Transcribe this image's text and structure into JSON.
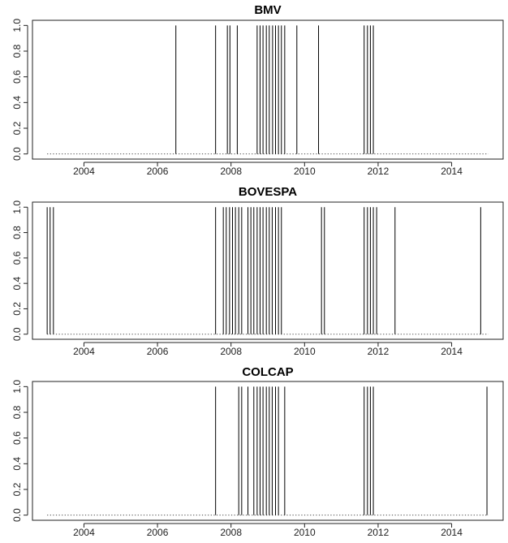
{
  "chart_data": [
    {
      "type": "line",
      "title": "BMV",
      "xlim": [
        2002.6,
        2015.4
      ],
      "ylim": [
        -0.04,
        1.04
      ],
      "x_ticks": [
        2004,
        2006,
        2008,
        2010,
        2012,
        2014
      ],
      "y_ticks": [
        0.0,
        0.2,
        0.4,
        0.6,
        0.8,
        1.0
      ],
      "x_tick_labels": [
        "2004",
        "2006",
        "2008",
        "2010",
        "2012",
        "2014"
      ],
      "y_tick_labels": [
        "0.0",
        "0.2",
        "0.4",
        "0.6",
        "0.8",
        "1.0"
      ],
      "baseline": {
        "y": 0,
        "x_start": 2003.0,
        "x_end": 2015.0,
        "style": "dotted"
      },
      "spikes_x": [
        2006.5,
        2007.58,
        2007.9,
        2007.97,
        2008.17,
        2008.71,
        2008.79,
        2008.87,
        2008.96,
        2009.04,
        2009.13,
        2009.21,
        2009.29,
        2009.37,
        2009.46,
        2009.79,
        2010.38,
        2011.62,
        2011.71,
        2011.79,
        2011.87
      ],
      "spike_value": 1.0
    },
    {
      "type": "line",
      "title": "BOVESPA",
      "xlim": [
        2002.6,
        2015.4
      ],
      "ylim": [
        -0.04,
        1.04
      ],
      "x_ticks": [
        2004,
        2006,
        2008,
        2010,
        2012,
        2014
      ],
      "y_ticks": [
        0.0,
        0.2,
        0.4,
        0.6,
        0.8,
        1.0
      ],
      "x_tick_labels": [
        "2004",
        "2006",
        "2008",
        "2010",
        "2012",
        "2014"
      ],
      "y_tick_labels": [
        "0.0",
        "0.2",
        "0.4",
        "0.6",
        "0.8",
        "1.0"
      ],
      "baseline": {
        "y": 0,
        "x_start": 2003.0,
        "x_end": 2015.0,
        "style": "dotted"
      },
      "spikes_x": [
        2003.0,
        2003.08,
        2003.17,
        2007.58,
        2007.79,
        2007.87,
        2007.96,
        2008.04,
        2008.12,
        2008.21,
        2008.29,
        2008.46,
        2008.54,
        2008.62,
        2008.71,
        2008.79,
        2008.87,
        2008.96,
        2009.04,
        2009.12,
        2009.21,
        2009.29,
        2009.37,
        2010.46,
        2010.54,
        2011.62,
        2011.71,
        2011.79,
        2011.87,
        2011.96,
        2012.46,
        2014.79
      ],
      "spike_value": 1.0
    },
    {
      "type": "line",
      "title": "COLCAP",
      "xlim": [
        2002.6,
        2015.4
      ],
      "ylim": [
        -0.04,
        1.04
      ],
      "x_ticks": [
        2004,
        2006,
        2008,
        2010,
        2012,
        2014
      ],
      "y_ticks": [
        0.0,
        0.2,
        0.4,
        0.6,
        0.8,
        1.0
      ],
      "x_tick_labels": [
        "2004",
        "2006",
        "2008",
        "2010",
        "2012",
        "2014"
      ],
      "y_tick_labels": [
        "0.0",
        "0.2",
        "0.4",
        "0.6",
        "0.8",
        "1.0"
      ],
      "baseline": {
        "y": 0,
        "x_start": 2003.0,
        "x_end": 2015.0,
        "style": "dotted"
      },
      "spikes_x": [
        2007.58,
        2008.21,
        2008.29,
        2008.46,
        2008.62,
        2008.71,
        2008.79,
        2008.87,
        2008.96,
        2009.04,
        2009.12,
        2009.21,
        2009.29,
        2009.46,
        2011.62,
        2011.71,
        2011.79,
        2011.87,
        2014.96
      ],
      "spike_value": 1.0
    }
  ]
}
